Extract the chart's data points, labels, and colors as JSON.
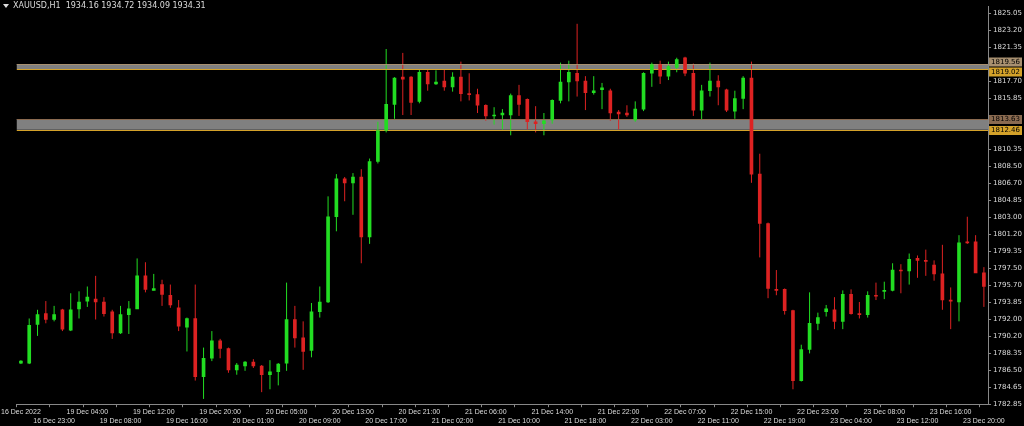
{
  "chart_data": {
    "type": "candlestick",
    "title": "XAUUSD,H1  1934.16 1934.72 1934.09 1934.31",
    "categories": [
      "16 Dec 2022",
      null,
      null,
      null,
      "16 Dec 23:00",
      null,
      null,
      null,
      "19 Dec 04:00",
      null,
      null,
      null,
      "19 Dec 08:00",
      null,
      null,
      null,
      "19 Dec 12:00",
      null,
      null,
      null,
      "19 Dec 16:00",
      null,
      null,
      null,
      "19 Dec 20:00",
      null,
      null,
      null,
      "20 Dec 01:00",
      null,
      null,
      null,
      "20 Dec 05:00",
      null,
      null,
      null,
      "20 Dec 09:00",
      null,
      null,
      null,
      "20 Dec 13:00",
      null,
      null,
      null,
      "20 Dec 17:00",
      null,
      null,
      null,
      "20 Dec 21:00",
      null,
      null,
      null,
      "21 Dec 02:00",
      null,
      null,
      null,
      "21 Dec 06:00",
      null,
      null,
      null,
      "21 Dec 10:00",
      null,
      null,
      null,
      "21 Dec 14:00",
      null,
      null,
      null,
      "21 Dec 18:00",
      null,
      null,
      null,
      "21 Dec 22:00",
      null,
      null,
      null,
      "22 Dec 03:00",
      null,
      null,
      null,
      "22 Dec 07:00",
      null,
      null,
      null,
      "22 Dec 11:00",
      null,
      null,
      null,
      "22 Dec 15:00",
      null,
      null,
      null,
      "22 Dec 19:00",
      null,
      null,
      null,
      "22 Dec 23:00",
      null,
      null,
      null,
      "23 Dec 04:00",
      null,
      null,
      null,
      "23 Dec 08:00",
      null,
      null,
      null,
      "23 Dec 12:00",
      null,
      null,
      null,
      "23 Dec 16:00",
      null,
      null,
      null,
      "23 Dec 20:00"
    ],
    "ohlc": [
      [
        1787.29,
        1787.6,
        1787.18,
        1787.5
      ],
      [
        1787.29,
        1792.1,
        1787.18,
        1791.37
      ],
      [
        1791.47,
        1793.04,
        1790.22,
        1792.52
      ],
      [
        1792.62,
        1793.98,
        1791.58,
        1791.99
      ],
      [
        1791.99,
        1793.46,
        1791.79,
        1792.52
      ],
      [
        1793.04,
        1793.14,
        1790.74,
        1790.95
      ],
      [
        1790.84,
        1794.82,
        1790.74,
        1793.04
      ],
      [
        1793.14,
        1795.03,
        1792.1,
        1793.88
      ],
      [
        1793.98,
        1795.55,
        1793.35,
        1794.4
      ],
      [
        1794.19,
        1796.7,
        1791.99,
        1793.88
      ],
      [
        1793.88,
        1794.4,
        1792.31,
        1792.62
      ],
      [
        1792.83,
        1793.04,
        1789.9,
        1790.53
      ],
      [
        1790.53,
        1793.46,
        1790.43,
        1792.52
      ],
      [
        1792.52,
        1793.98,
        1790.43,
        1793.14
      ],
      [
        1793.14,
        1798.58,
        1793.14,
        1796.7
      ],
      [
        1796.7,
        1798.17,
        1794.92,
        1795.24
      ],
      [
        1795.13,
        1796.91,
        1795.13,
        1795.34
      ],
      [
        1795.76,
        1796.28,
        1793.46,
        1794.71
      ],
      [
        1794.61,
        1795.76,
        1793.25,
        1793.56
      ],
      [
        1793.25,
        1794.09,
        1790.74,
        1791.26
      ],
      [
        1791.16,
        1792.2,
        1788.54,
        1792.1
      ],
      [
        1792.1,
        1795.76,
        1785.4,
        1785.82
      ],
      [
        1785.82,
        1788.96,
        1783.42,
        1787.81
      ],
      [
        1787.81,
        1790.74,
        1787.5,
        1789.69
      ],
      [
        1789.69,
        1789.9,
        1787.81,
        1788.86
      ],
      [
        1788.86,
        1788.96,
        1786.24,
        1786.56
      ],
      [
        1786.56,
        1787.29,
        1786.03,
        1787.08
      ],
      [
        1786.97,
        1787.5,
        1786.45,
        1787.39
      ],
      [
        1787.39,
        1787.71,
        1786.76,
        1786.97
      ],
      [
        1786.97,
        1787.08,
        1784.15,
        1786.03
      ],
      [
        1786.03,
        1787.6,
        1784.46,
        1786.35
      ],
      [
        1786.35,
        1787.29,
        1784.88,
        1787.18
      ],
      [
        1787.29,
        1795.97,
        1786.45,
        1791.99
      ],
      [
        1791.99,
        1793.46,
        1788.96,
        1790.01
      ],
      [
        1790.01,
        1791.79,
        1786.56,
        1788.54
      ],
      [
        1788.65,
        1793.77,
        1787.91,
        1792.83
      ],
      [
        1792.83,
        1795.55,
        1792.2,
        1793.88
      ],
      [
        1793.88,
        1805.28,
        1793.77,
        1803.08
      ],
      [
        1803.08,
        1807.68,
        1801.51,
        1807.16
      ],
      [
        1807.16,
        1807.37,
        1804.75,
        1806.74
      ],
      [
        1806.74,
        1807.79,
        1803.29,
        1807.37
      ],
      [
        1807.37,
        1808.21,
        1798.06,
        1800.89
      ],
      [
        1800.89,
        1809.36,
        1800.15,
        1809.04
      ],
      [
        1809.04,
        1813.33,
        1808.83,
        1812.39
      ],
      [
        1812.39,
        1821.18,
        1812.18,
        1815.21
      ],
      [
        1815.21,
        1818.14,
        1813.65,
        1818.04
      ],
      [
        1818.14,
        1820.76,
        1814.06,
        1817.93
      ],
      [
        1818.14,
        1818.25,
        1814.06,
        1815.42
      ],
      [
        1815.53,
        1818.98,
        1815.32,
        1818.67
      ],
      [
        1818.67,
        1818.98,
        1816.68,
        1817.41
      ],
      [
        1817.41,
        1818.88,
        1817.31,
        1817.62
      ],
      [
        1817.73,
        1818.98,
        1816.68,
        1817.1
      ],
      [
        1817.1,
        1818.67,
        1816.58,
        1818.14
      ],
      [
        1818.14,
        1819.82,
        1815.53,
        1816.37
      ],
      [
        1816.37,
        1818.56,
        1815.63,
        1816.26
      ],
      [
        1816.26,
        1816.89,
        1814.27,
        1815.11
      ],
      [
        1815.11,
        1815.21,
        1813.44,
        1813.96
      ],
      [
        1813.96,
        1814.9,
        1813.02,
        1814.06
      ],
      [
        1814.06,
        1814.69,
        1812.5,
        1814.27
      ],
      [
        1814.06,
        1816.37,
        1811.87,
        1816.16
      ],
      [
        1816.16,
        1817.31,
        1813.96,
        1815.21
      ],
      [
        1815.74,
        1815.84,
        1812.5,
        1813.33
      ],
      [
        1813.33,
        1815.01,
        1812.18,
        1813.12
      ],
      [
        1813.12,
        1814.27,
        1811.87,
        1813.44
      ],
      [
        1813.54,
        1815.74,
        1813.12,
        1815.63
      ],
      [
        1815.63,
        1819.71,
        1815.32,
        1817.62
      ],
      [
        1817.62,
        1819.92,
        1815.53,
        1818.67
      ],
      [
        1818.56,
        1823.9,
        1816.05,
        1817.73
      ],
      [
        1817.73,
        1818.25,
        1814.59,
        1816.47
      ],
      [
        1816.47,
        1818.25,
        1816.26,
        1816.68
      ],
      [
        1816.78,
        1817.52,
        1814.69,
        1816.99
      ],
      [
        1816.68,
        1816.89,
        1813.44,
        1814.27
      ],
      [
        1814.38,
        1814.59,
        1812.5,
        1814.17
      ],
      [
        1814.27,
        1815.11,
        1813.86,
        1814.06
      ],
      [
        1813.54,
        1815.53,
        1813.33,
        1814.69
      ],
      [
        1814.69,
        1818.67,
        1814.48,
        1818.56
      ],
      [
        1818.56,
        1819.71,
        1817.1,
        1819.5
      ],
      [
        1819.5,
        1819.92,
        1817.41,
        1818.25
      ],
      [
        1818.25,
        1819.82,
        1817.83,
        1819.29
      ],
      [
        1819.19,
        1820.24,
        1818.67,
        1820.03
      ],
      [
        1820.24,
        1820.34,
        1818.25,
        1818.56
      ],
      [
        1818.56,
        1819.61,
        1813.96,
        1814.59
      ],
      [
        1814.59,
        1817.31,
        1813.54,
        1816.68
      ],
      [
        1816.68,
        1819.71,
        1816.05,
        1817.73
      ],
      [
        1817.73,
        1818.35,
        1815.11,
        1817.1
      ],
      [
        1816.78,
        1816.89,
        1814.38,
        1814.59
      ],
      [
        1814.48,
        1816.68,
        1813.65,
        1815.84
      ],
      [
        1815.84,
        1818.25,
        1814.69,
        1818.04
      ],
      [
        1818.04,
        1819.82,
        1806.74,
        1807.68
      ],
      [
        1807.68,
        1809.88,
        1798.69,
        1802.35
      ],
      [
        1802.35,
        1802.45,
        1794.29,
        1795.34
      ],
      [
        1795.24,
        1797.33,
        1794.61,
        1795.13
      ],
      [
        1795.24,
        1795.34,
        1792.52,
        1792.94
      ],
      [
        1792.94,
        1793.04,
        1784.46,
        1785.4
      ],
      [
        1785.4,
        1789.27,
        1785.3,
        1788.75
      ],
      [
        1788.75,
        1794.92,
        1788.33,
        1791.58
      ],
      [
        1791.58,
        1792.73,
        1790.84,
        1792.2
      ],
      [
        1792.83,
        1793.56,
        1792.31,
        1793.14
      ],
      [
        1793.04,
        1794.4,
        1790.95,
        1791.79
      ],
      [
        1791.79,
        1795.13,
        1790.95,
        1794.71
      ],
      [
        1794.71,
        1795.24,
        1792.52,
        1792.62
      ],
      [
        1792.62,
        1793.88,
        1792.1,
        1792.52
      ],
      [
        1792.52,
        1795.03,
        1792.2,
        1794.61
      ],
      [
        1794.61,
        1795.97,
        1794.09,
        1794.5
      ],
      [
        1795.03,
        1796.07,
        1794.19,
        1795.13
      ],
      [
        1795.13,
        1798.06,
        1795.03,
        1797.33
      ],
      [
        1797.33,
        1797.96,
        1794.82,
        1797.22
      ],
      [
        1797.22,
        1799.11,
        1795.76,
        1798.48
      ],
      [
        1798.58,
        1798.9,
        1796.49,
        1798.37
      ],
      [
        1798.37,
        1799.53,
        1796.7,
        1798.27
      ],
      [
        1797.85,
        1798.37,
        1796.18,
        1796.91
      ],
      [
        1796.91,
        1800.05,
        1793.04,
        1794.09
      ],
      [
        1794.09,
        1795.45,
        1790.95,
        1793.98
      ],
      [
        1793.88,
        1801.09,
        1791.79,
        1800.26
      ],
      [
        1800.36,
        1803.08,
        1800.15,
        1800.26
      ],
      [
        1800.36,
        1801.09,
        1797.02,
        1797.02
      ],
      [
        1797.02,
        1797.64,
        1793.35,
        1795.55
      ]
    ],
    "colors": [
      "#22dd22",
      "#22dd22",
      "#22dd22",
      "#dd2222",
      "#22dd22",
      "#dd2222",
      "#22dd22",
      "#22dd22",
      "#22dd22",
      "#dd2222",
      "#dd2222",
      "#dd2222",
      "#22dd22",
      "#22dd22",
      "#22dd22",
      "#dd2222",
      "#22dd22",
      "#dd2222",
      "#dd2222",
      "#dd2222",
      "#22dd22",
      "#dd2222",
      "#22dd22",
      "#22dd22",
      "#dd2222",
      "#dd2222",
      "#22dd22",
      "#22dd22",
      "#dd2222",
      "#dd2222",
      "#22dd22",
      "#22dd22",
      "#22dd22",
      "#dd2222",
      "#dd2222",
      "#22dd22",
      "#22dd22",
      "#22dd22",
      "#22dd22",
      "#dd2222",
      "#22dd22",
      "#dd2222",
      "#22dd22",
      "#22dd22",
      "#22dd22",
      "#22dd22",
      "#dd2222",
      "#dd2222",
      "#22dd22",
      "#dd2222",
      "#22dd22",
      "#dd2222",
      "#22dd22",
      "#dd2222",
      "#dd2222",
      "#dd2222",
      "#dd2222",
      "#22dd22",
      "#22dd22",
      "#22dd22",
      "#dd2222",
      "#dd2222",
      "#dd2222",
      "#22dd22",
      "#22dd22",
      "#22dd22",
      "#22dd22",
      "#dd2222",
      "#dd2222",
      "#22dd22",
      "#22dd22",
      "#dd2222",
      "#dd2222",
      "#dd2222",
      "#22dd22",
      "#22dd22",
      "#22dd22",
      "#dd2222",
      "#22dd22",
      "#22dd22",
      "#dd2222",
      "#dd2222",
      "#22dd22",
      "#22dd22",
      "#dd2222",
      "#dd2222",
      "#22dd22",
      "#22dd22",
      "#dd2222",
      "#dd2222",
      "#dd2222",
      "#dd2222",
      "#dd2222",
      "#dd2222",
      "#22dd22",
      "#22dd22",
      "#22dd22",
      "#22dd22",
      "#dd2222",
      "#22dd22",
      "#dd2222",
      "#dd2222",
      "#22dd22",
      "#dd2222",
      "#22dd22",
      "#22dd22",
      "#dd2222",
      "#22dd22",
      "#dd2222",
      "#dd2222",
      "#dd2222",
      "#dd2222",
      "#dd2222",
      "#22dd22",
      "#dd2222",
      "#dd2222",
      "#dd2222"
    ],
    "ylim": [
      1782.85,
      1825.8
    ],
    "yticks": [
      {
        "value": 1825.05,
        "label": "1825.05"
      },
      {
        "value": 1823.2,
        "label": "1823.20"
      },
      {
        "value": 1821.35,
        "label": "1821.35"
      },
      {
        "value": 1819.5,
        "label": null
      },
      {
        "value": 1817.7,
        "label": "1817.70"
      },
      {
        "value": 1815.85,
        "label": "1815.85"
      },
      {
        "value": 1814.0,
        "label": null
      },
      {
        "value": 1812.15,
        "label": null
      },
      {
        "value": 1810.35,
        "label": "1810.35"
      },
      {
        "value": 1808.5,
        "label": "1808.50"
      },
      {
        "value": 1806.7,
        "label": "1806.70"
      },
      {
        "value": 1804.85,
        "label": "1804.85"
      },
      {
        "value": 1803.0,
        "label": "1803.00"
      },
      {
        "value": 1801.2,
        "label": "1801.20"
      },
      {
        "value": 1799.35,
        "label": "1799.35"
      },
      {
        "value": 1797.5,
        "label": "1797.50"
      },
      {
        "value": 1795.7,
        "label": "1795.70"
      },
      {
        "value": 1793.85,
        "label": "1793.85"
      },
      {
        "value": 1792.0,
        "label": "1792.00"
      },
      {
        "value": 1790.2,
        "label": "1790.20"
      },
      {
        "value": 1788.35,
        "label": "1788.35"
      },
      {
        "value": 1786.5,
        "label": "1786.50"
      },
      {
        "value": 1784.65,
        "label": "1784.65"
      },
      {
        "value": 1782.85,
        "label": "1782.85"
      }
    ],
    "bands": [
      {
        "axis": "y",
        "from": 1819.02,
        "to": 1819.56,
        "color": "#808080"
      },
      {
        "axis": "y",
        "from": 1812.46,
        "to": 1813.63,
        "color": "#808080"
      }
    ],
    "ref_lines": [
      {
        "axis": "y",
        "value": 1819.56,
        "label": "1819.56",
        "color": "#a89070"
      },
      {
        "axis": "y",
        "value": 1819.02,
        "label": "1819.02",
        "color": "#d4a22a"
      },
      {
        "axis": "y",
        "value": 1813.63,
        "label": "1813.63",
        "color": "#8a6a50"
      },
      {
        "axis": "y",
        "value": 1812.46,
        "label": "1812.46",
        "color": "#d4a22a"
      }
    ]
  }
}
